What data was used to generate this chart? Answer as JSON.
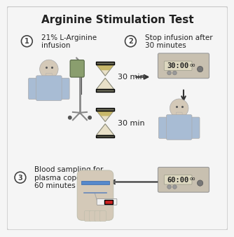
{
  "title": "Arginine Stimulation Test",
  "title_fontsize": 11,
  "title_fontweight": "bold",
  "bg_color": "#f5f5f5",
  "border_color": "#cccccc",
  "step1_num": "1",
  "step1_text": "21% L-Arginine\ninfusion",
  "step2_num": "2",
  "step2_text": "Stop infusion after\n30 minutes",
  "step3_num": "3",
  "step3_text": "Blood sampling for\nplasma copeptin at\n60 minutes",
  "timer1_text": "30 min",
  "timer2_text": "30 min",
  "display1_text": "30:00",
  "display2_text": "60:00",
  "arrow_color": "#333333",
  "person_skin": "#d4c9b8",
  "person_shirt_blue": "#a8bcd4",
  "iv_bag_color": "#8a9e6e",
  "iv_stand_color": "#888888",
  "timer_sand_color": "#555555",
  "display_bg": "#c8c0b0",
  "display_text_color": "#222222",
  "circle_color": "#444444",
  "text_color": "#222222",
  "font_size_labels": 7.5,
  "font_size_timer": 8,
  "font_size_display": 7.5
}
